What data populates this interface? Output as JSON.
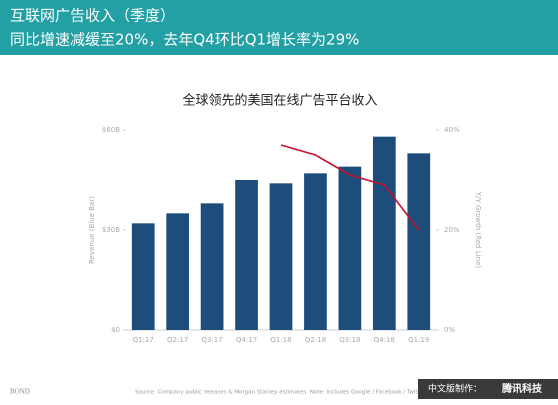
{
  "header": {
    "title": "互联网广告收入（季度）",
    "subtitle": "同比增速减缓至20%，去年Q4环比Q1增长率为29%"
  },
  "chart_data": {
    "type": "bar",
    "title": "全球领先的美国在线广告平台收入",
    "y_label": "Revenue (Blue Bar)",
    "y2_label": "Y/Y Growth (Red Line)",
    "categories": [
      "Q1:17",
      "Q2:17",
      "Q3:17",
      "Q4:17",
      "Q1:18",
      "Q2:18",
      "Q3:18",
      "Q4:18",
      "Q1:19"
    ],
    "series": [
      {
        "type": "bar",
        "color": "#1d4e7b",
        "values": [
          32,
          35,
          38,
          45,
          44,
          47,
          49,
          58,
          53
        ]
      },
      {
        "type": "line",
        "color": "#c8102e",
        "axis": "y2",
        "values": [
          null,
          null,
          null,
          null,
          37,
          35,
          31,
          29,
          20
        ]
      }
    ],
    "ylim": [
      0,
      60
    ],
    "yticks": [
      {
        "value": 0,
        "label": "$0"
      },
      {
        "value": 30,
        "label": "$30B"
      },
      {
        "value": 60,
        "label": "$60B"
      }
    ],
    "y2lim": [
      0,
      40
    ],
    "y2ticks": [
      {
        "value": 0,
        "label": "0%"
      },
      {
        "value": 20,
        "label": "20%"
      },
      {
        "value": 40,
        "label": "40%"
      }
    ],
    "grid": false
  },
  "footer": {
    "source": "Source: Company public releases & Morgan Stanley estimates. Note: Includes Google / Facebook / Twitter / Amazon / S",
    "brand": "BOND",
    "badge_prefix": "中文版制作：",
    "badge_name": "腾讯科技"
  }
}
